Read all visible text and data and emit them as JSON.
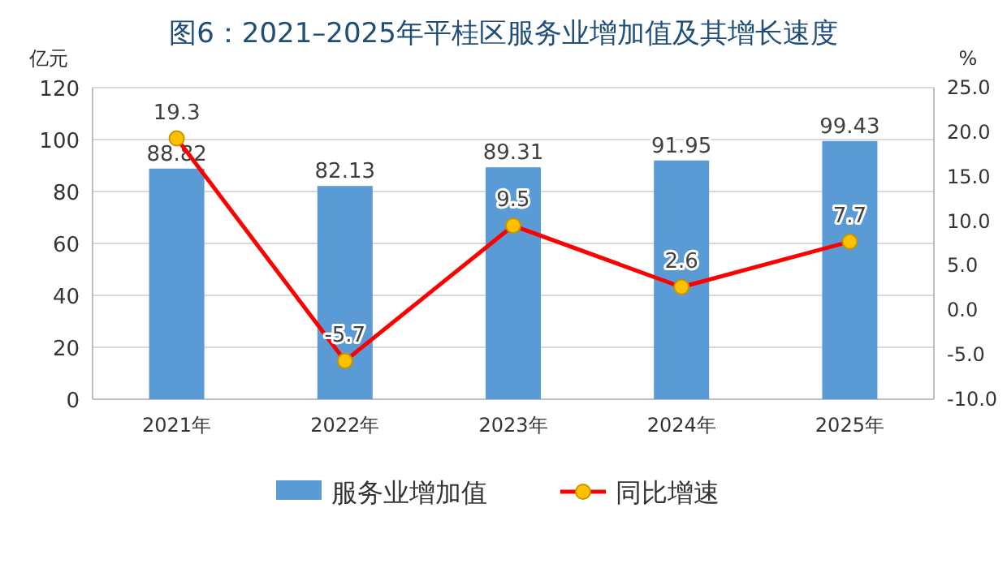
{
  "chart_data": {
    "type": "bar",
    "title": "图6：2021–2025年平桂区服务业增加值及其增长速度",
    "ylabel": "亿元",
    "y2label": "%",
    "categories": [
      "2021年",
      "2022年",
      "2023年",
      "2024年",
      "2025年"
    ],
    "series": [
      {
        "name": "服务业增加值",
        "color": "#5b9bd5",
        "values": [
          88.82,
          82.13,
          89.31,
          91.95,
          99.43
        ]
      },
      {
        "name": "同比增速",
        "type": "line",
        "axis": "y2",
        "color": "#ff0000",
        "values": [
          19.3,
          -5.7,
          9.5,
          2.6,
          7.7
        ]
      }
    ],
    "ylim": [
      0,
      120
    ],
    "yticks": [
      0,
      20,
      40,
      60,
      80,
      100,
      120
    ],
    "y2lim": [
      -10,
      25
    ],
    "y2ticks": [
      {
        "value": -10,
        "label": "-10.0"
      },
      {
        "value": -5,
        "label": "-5.0"
      },
      {
        "value": 0,
        "label": "0.0"
      },
      {
        "value": 5,
        "label": "5.0"
      },
      {
        "value": 10,
        "label": "10.0"
      },
      {
        "value": 15,
        "label": "15.0"
      },
      {
        "value": 20,
        "label": "20.0"
      },
      {
        "value": 25,
        "label": "25.0"
      }
    ],
    "grid": "y",
    "legend": "bottom",
    "marker": "circle",
    "data_labels": true
  }
}
